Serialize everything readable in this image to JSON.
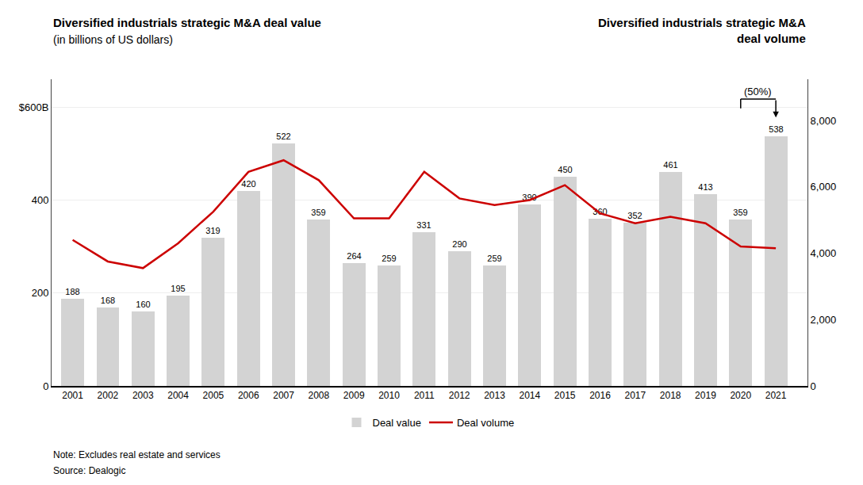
{
  "chart_data": {
    "type": "bar",
    "title": "Diversified industrials strategic M&A deal value",
    "subtitle": "(in billions of US dollars)",
    "title_right": "Diversified industrials strategic M&A\ndeal volume",
    "x": [
      2001,
      2002,
      2003,
      2004,
      2005,
      2006,
      2007,
      2008,
      2009,
      2010,
      2011,
      2012,
      2013,
      2014,
      2015,
      2016,
      2017,
      2018,
      2019,
      2020,
      2021
    ],
    "series": [
      {
        "name": "Deal value",
        "type": "bar",
        "color": "#d3d3d3",
        "data_labels": true,
        "values": [
          188,
          168,
          160,
          195,
          319,
          420,
          522,
          359,
          264,
          259,
          331,
          290,
          259,
          390,
          450,
          360,
          352,
          461,
          413,
          359,
          538
        ]
      },
      {
        "name": "Deal volume",
        "type": "line",
        "color": "#cc0000",
        "axis": "y2",
        "values": [
          4400,
          3750,
          3550,
          4300,
          5250,
          6450,
          6800,
          6200,
          5050,
          5050,
          6450,
          5650,
          5450,
          5600,
          6050,
          5200,
          4900,
          5100,
          4900,
          4200,
          4150
        ]
      }
    ],
    "xlim": [
      2000.4,
      2021.9
    ],
    "xticks": [
      2001,
      2002,
      2003,
      2004,
      2005,
      2006,
      2007,
      2008,
      2009,
      2010,
      2011,
      2012,
      2013,
      2014,
      2015,
      2016,
      2017,
      2018,
      2019,
      2020,
      2021
    ],
    "ylim": [
      0,
      660
    ],
    "yticks": [
      0,
      200,
      400,
      {
        "value": 600,
        "label": "$600B"
      }
    ],
    "y2lim": [
      0,
      9240
    ],
    "y2ticks": [
      0,
      {
        "value": 2000,
        "label": "2,000"
      },
      {
        "value": 4000,
        "label": "4,000"
      },
      {
        "value": 6000,
        "label": "6,000"
      },
      {
        "value": 8000,
        "label": "8,000"
      }
    ],
    "grid": true,
    "legend": "bottom",
    "annotations": [
      {
        "text": "(50%)",
        "x": [
          2020,
          2021
        ]
      }
    ],
    "notes": [
      "Note: Excludes real estate and services",
      "Source: Dealogic"
    ]
  }
}
